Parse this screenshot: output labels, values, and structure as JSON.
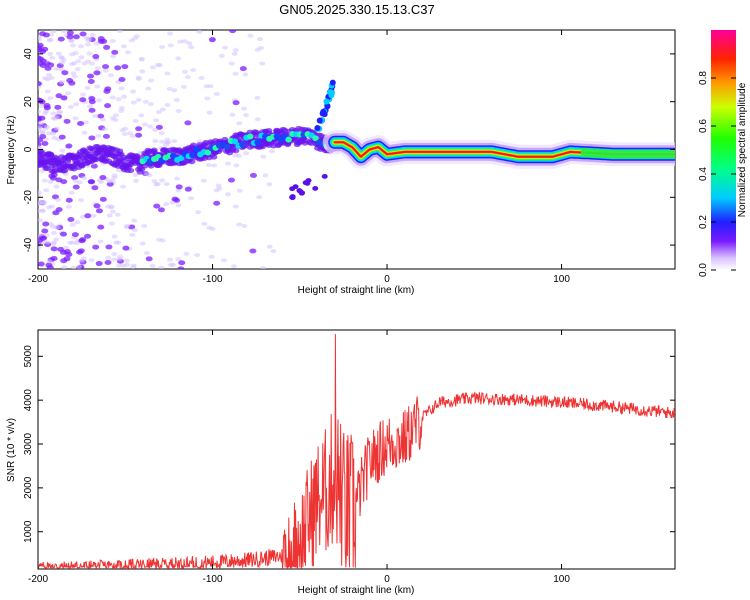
{
  "title": "GN05.2025.330.15.13.C37",
  "chart_data": [
    {
      "type": "heatmap",
      "xlabel": "Height of straight line (km)",
      "ylabel": "Frequency (Hz)",
      "xlim": [
        -200,
        165
      ],
      "ylim": [
        -50,
        50
      ],
      "xticks": [
        -200,
        -100,
        0,
        100
      ],
      "yticks": [
        -40,
        -20,
        0,
        20,
        40
      ],
      "xtick_labels": [
        "-200",
        "-100",
        "0",
        "100"
      ],
      "ytick_labels": [
        "-40",
        "-20",
        "0",
        "20",
        "40"
      ],
      "colorbar": {
        "label": "Normalized spectral amplitude",
        "range": [
          0,
          1
        ],
        "ticks": [
          0.0,
          0.2,
          0.4,
          0.6,
          0.8
        ],
        "tick_labels": [
          "0.0",
          "0.2",
          "0.4",
          "0.6",
          "0.8"
        ]
      },
      "ridge": {
        "x": [
          -140,
          -120,
          -100,
          -80,
          -60,
          -45,
          -35,
          -30,
          -25,
          -20,
          -15,
          -10,
          -5,
          0,
          10,
          30,
          60,
          75,
          85,
          95,
          105,
          130,
          165
        ],
        "y": [
          -4,
          -3,
          0,
          4,
          5,
          6,
          2,
          3,
          3,
          1,
          -3,
          0,
          1,
          -2,
          -1,
          -1,
          -1,
          -3,
          -3,
          -3,
          -1,
          -2,
          -2
        ]
      },
      "plume": {
        "x": [
          -40,
          -37,
          -34,
          -32,
          -31
        ],
        "y": [
          8,
          14,
          20,
          24,
          28
        ]
      }
    },
    {
      "type": "line",
      "xlabel": "Height of straight line (km)",
      "ylabel": "SNR (10 * v/v)",
      "xlim": [
        -200,
        165
      ],
      "ylim": [
        150,
        5600
      ],
      "xticks": [
        -200,
        -100,
        0,
        100
      ],
      "yticks": [
        1000,
        2000,
        3000,
        4000,
        5000
      ],
      "xtick_labels": [
        "-200",
        "-100",
        "0",
        "100"
      ],
      "ytick_labels": [
        "1000",
        "2000",
        "3000",
        "4000",
        "5000"
      ],
      "x": [
        -200,
        -150,
        -100,
        -80,
        -60,
        -50,
        -45,
        -40,
        -35,
        -30,
        -28,
        -25,
        -20,
        -15,
        -10,
        -5,
        0,
        10,
        20,
        30,
        50,
        80,
        100,
        130,
        165
      ],
      "y": [
        200,
        230,
        300,
        350,
        450,
        800,
        1300,
        1700,
        1900,
        2300,
        2200,
        1600,
        1400,
        2000,
        2600,
        2800,
        3000,
        3100,
        3600,
        3950,
        4050,
        4000,
        3950,
        3850,
        3700
      ],
      "color": "#ee3333"
    }
  ]
}
